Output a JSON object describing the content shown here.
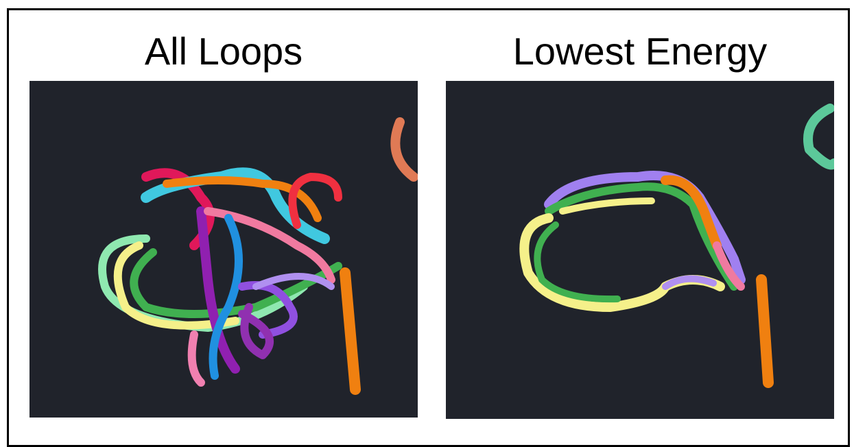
{
  "panels": [
    {
      "title": "All Loops"
    },
    {
      "title": "Lowest Energy"
    }
  ]
}
